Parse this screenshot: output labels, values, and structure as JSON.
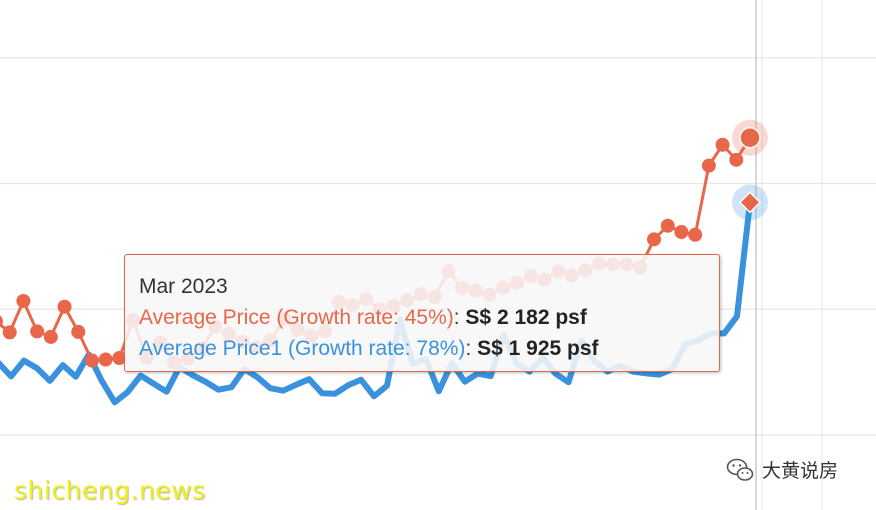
{
  "chart_data": {
    "type": "line",
    "series": [
      {
        "name": "Average Price",
        "color": "#e8674a",
        "values": [
          1452,
          1408,
          1533,
          1412,
          1390,
          1510,
          1410,
          1296,
          1300,
          1306,
          1457,
          1306,
          1367,
          1290,
          1304,
          1344,
          1430,
          1402,
          1370,
          1348,
          1376,
          1460,
          1418,
          1395,
          1413,
          1530,
          1517,
          1540,
          1500,
          1512,
          1536,
          1560,
          1548,
          1652,
          1585,
          1574,
          1558,
          1586,
          1605,
          1632,
          1618,
          1650,
          1634,
          1654,
          1682,
          1678,
          1678,
          1666,
          1778,
          1832,
          1807,
          1796,
          2071,
          2154,
          2094,
          2182
        ],
        "markers": true,
        "highlight_last": "circle"
      },
      {
        "name": "Average Price1",
        "color": "#3a92de",
        "values": [
          1289,
          1233,
          1296,
          1266,
          1215,
          1278,
          1232,
          1320,
          1216,
          1130,
          1171,
          1236,
          1204,
          1172,
          1270,
          1238,
          1212,
          1180,
          1190,
          1262,
          1230,
          1186,
          1176,
          1200,
          1222,
          1166,
          1164,
          1198,
          1220,
          1154,
          1196,
          1458,
          1282,
          1302,
          1174,
          1286,
          1212,
          1244,
          1234,
          1397,
          1284,
          1252,
          1307,
          1244,
          1210,
          1376,
          1294,
          1252,
          1275,
          1252,
          1245,
          1240,
          1262,
          1360,
          1376,
          1404,
          1404,
          1472,
          1925
        ],
        "markers": false,
        "highlight_last": "diamond"
      }
    ],
    "grid": true
  },
  "tooltip": {
    "title": "Mar 2023",
    "rows": [
      {
        "label": "Average Price (Growth rate: 45%)",
        "separator": ": ",
        "value": "S$ 2 182 psf",
        "color": "#e8674a"
      },
      {
        "label": "Average Price1 (Growth rate: 78%)",
        "separator": ": ",
        "value": "S$ 1 925 psf",
        "color": "#3a92de"
      }
    ]
  },
  "watermarks": {
    "left": "shicheng.news",
    "right": "大黄说房",
    "right_icon": "wechat-icon"
  }
}
